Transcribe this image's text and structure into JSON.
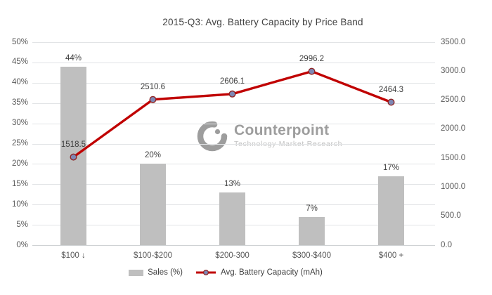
{
  "title": "2015-Q3: Avg. Battery Capacity by Price Band",
  "watermark": {
    "name": "Counterpoint",
    "tagline": "Technology Market Research"
  },
  "legend": {
    "items": [
      {
        "label": "Sales (%)"
      },
      {
        "label": "Avg. Battery Capacity (mAh)"
      }
    ]
  },
  "colors": {
    "bar": "#bfbfbf",
    "line": "#c00000",
    "marker_fill": "#7e88b5",
    "marker_stroke": "#8f2424",
    "grid": "#e2e4e6",
    "axis_text": "#595959",
    "label_text": "#404040",
    "watermark_gray": "#9d9d9d",
    "watermark_light": "#c2c2c2"
  },
  "chart_data": {
    "type": "combo: bar + line",
    "title": "2015-Q3: Avg. Battery Capacity by Price Band",
    "categories": [
      "$100 ↓",
      "$100-$200",
      "$200-300",
      "$300-$400",
      "$400 +"
    ],
    "series": [
      {
        "name": "Sales (%)",
        "type": "bar",
        "axis": "left",
        "values": [
          44,
          20,
          13,
          7,
          17
        ],
        "data_labels": [
          "44%",
          "20%",
          "13%",
          "7%",
          "17%"
        ]
      },
      {
        "name": "Avg. Battery Capacity (mAh)",
        "type": "line",
        "axis": "right",
        "values": [
          1518.5,
          2510.6,
          2606.1,
          2996.2,
          2464.3
        ],
        "data_labels": [
          "1518.5",
          "2510.6",
          "2606.1",
          "2996.2",
          "2464.3"
        ]
      }
    ],
    "left_axis": {
      "min": 0,
      "max": 50,
      "unit": "%",
      "ticks": [
        "0%",
        "5%",
        "10%",
        "15%",
        "20%",
        "25%",
        "30%",
        "35%",
        "40%",
        "45%",
        "50%"
      ]
    },
    "right_axis": {
      "min": 0,
      "max": 3500,
      "unit": "mAh",
      "ticks": [
        "0.0",
        "500.0",
        "1000.0",
        "1500.0",
        "2000.0",
        "2500.0",
        "3000.0",
        "3500.0"
      ]
    },
    "grid": true,
    "legend_position": "bottom"
  }
}
